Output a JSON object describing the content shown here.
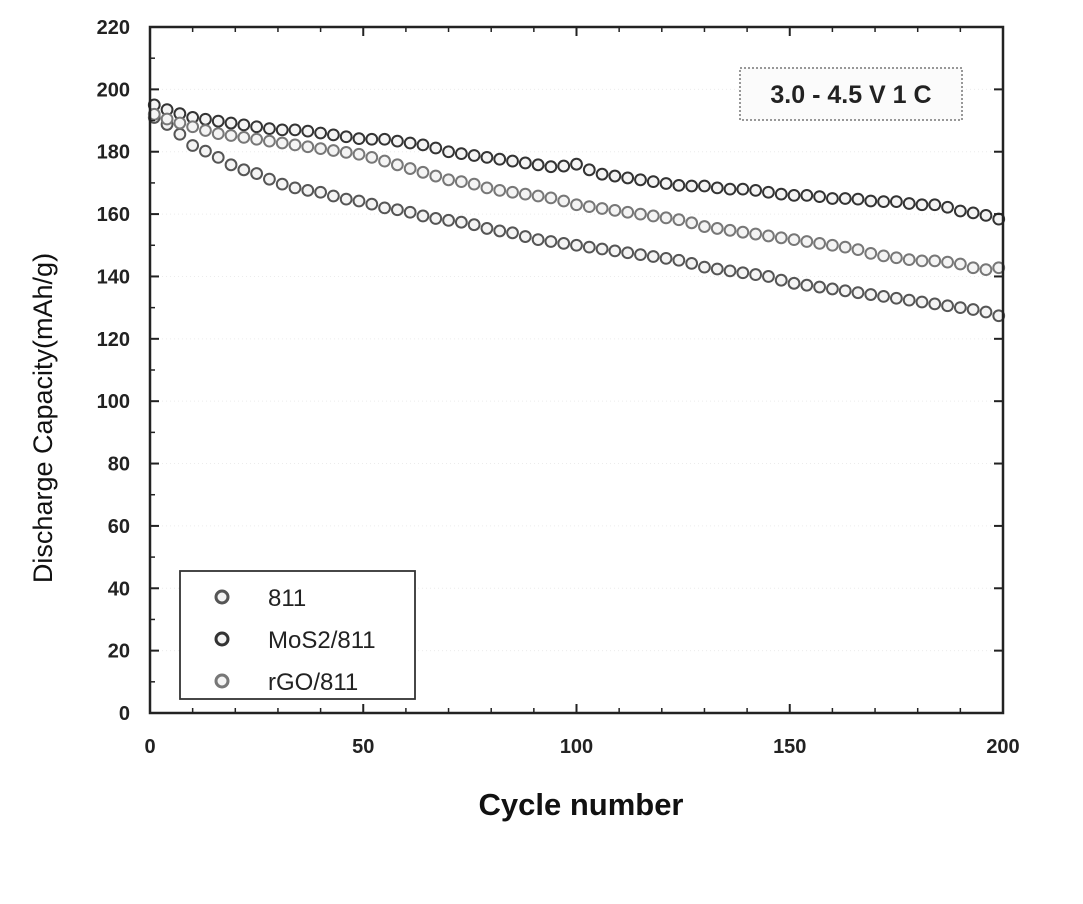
{
  "chart_data": {
    "type": "scatter",
    "xlabel": "Cycle number",
    "ylabel": "Discharge Capacity(mAh/g)",
    "xlim": [
      0,
      200
    ],
    "ylim": [
      0,
      220
    ],
    "xticks": [
      0,
      50,
      100,
      150,
      200
    ],
    "yticks": [
      0,
      20,
      40,
      60,
      80,
      100,
      120,
      140,
      160,
      180,
      200,
      220
    ],
    "annotation": "3.0 - 4.5 V 1 C",
    "legend_position": "bottom-left",
    "sample_step": 3,
    "series": [
      {
        "name": "811",
        "color": "#555555",
        "x": [
          1,
          5,
          10,
          15,
          20,
          25,
          30,
          35,
          40,
          45,
          50,
          55,
          60,
          65,
          70,
          75,
          80,
          85,
          90,
          95,
          100,
          105,
          110,
          115,
          120,
          125,
          130,
          135,
          140,
          145,
          150,
          155,
          160,
          165,
          170,
          175,
          180,
          185,
          190,
          195,
          200
        ],
        "y": [
          191,
          188,
          182,
          179,
          175,
          173,
          170,
          168,
          167,
          165,
          164,
          162,
          161,
          159,
          158,
          157,
          155,
          154,
          152,
          151,
          150,
          149,
          148,
          147,
          146,
          145,
          143,
          142,
          141,
          140,
          138,
          137,
          136,
          135,
          134,
          133,
          132,
          131,
          130,
          129,
          127
        ]
      },
      {
        "name": "MoS2/811",
        "color": "#333333",
        "x": [
          1,
          5,
          10,
          15,
          20,
          25,
          30,
          35,
          40,
          45,
          50,
          55,
          60,
          65,
          70,
          75,
          80,
          85,
          90,
          95,
          100,
          105,
          110,
          115,
          120,
          125,
          130,
          135,
          140,
          145,
          150,
          155,
          160,
          165,
          170,
          175,
          180,
          185,
          190,
          195,
          200
        ],
        "y": [
          195,
          193,
          191,
          190,
          189,
          188,
          187,
          187,
          186,
          185,
          184,
          184,
          183,
          182,
          180,
          179,
          178,
          177,
          176,
          175,
          176,
          173,
          172,
          171,
          170,
          169,
          169,
          168,
          168,
          167,
          166,
          166,
          165,
          165,
          164,
          164,
          163,
          163,
          161,
          160,
          158
        ]
      },
      {
        "name": "rGO/811",
        "color": "#777777",
        "x": [
          1,
          5,
          10,
          15,
          20,
          25,
          30,
          35,
          40,
          45,
          50,
          55,
          60,
          65,
          70,
          75,
          80,
          85,
          90,
          95,
          100,
          105,
          110,
          115,
          120,
          125,
          130,
          135,
          140,
          145,
          150,
          155,
          160,
          165,
          170,
          175,
          180,
          185,
          190,
          195,
          200
        ],
        "y": [
          192,
          190,
          188,
          186,
          185,
          184,
          183,
          182,
          181,
          180,
          179,
          177,
          175,
          173,
          171,
          170,
          168,
          167,
          166,
          165,
          163,
          162,
          161,
          160,
          159,
          158,
          156,
          155,
          154,
          153,
          152,
          151,
          150,
          149,
          147,
          146,
          145,
          145,
          144,
          142,
          143
        ]
      }
    ]
  }
}
